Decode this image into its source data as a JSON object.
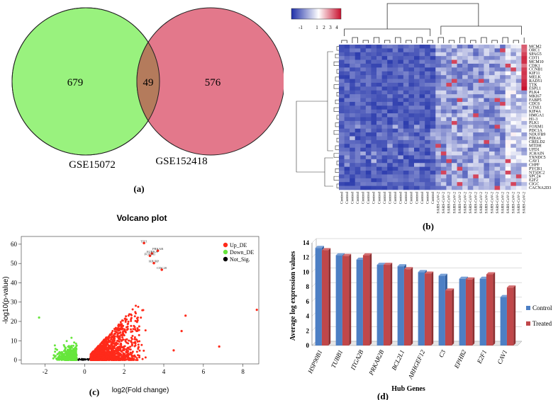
{
  "chart_data": [
    {
      "type": "venn",
      "panel_label": "(a)",
      "sets": [
        {
          "name": "GSE15072",
          "only": 679,
          "color": "#99f27e"
        },
        {
          "name": "GSE152418",
          "only": 576,
          "color": "#e3788b"
        }
      ],
      "intersection": 49,
      "intersection_color": "#b47b5c"
    },
    {
      "type": "heatmap",
      "panel_label": "(b)",
      "color_key": {
        "ticks": [
          "-1",
          "1",
          "2",
          "3",
          "4"
        ],
        "colors": [
          "#1e2fa8",
          "#ffffff",
          "#c8102e"
        ]
      },
      "genes": [
        "MCM2",
        "ORC1",
        "SPAG5",
        "CDT1",
        "MCM10",
        "CDK1",
        "CCNB1",
        "KIF11",
        "MELK",
        "RAD51",
        "TTK",
        "ESPL1",
        "PLK4",
        "MKI67",
        "FABP5",
        "CDC6",
        "GTSE1",
        "KIF4A",
        "HMGA1",
        "H1-3",
        "PLK1",
        "FOXM1",
        "PDC1A",
        "NDUFB9",
        "PDIA6",
        "CRELD2",
        "MTDH",
        "UFD1",
        "JCHAIN",
        "TXNDC5",
        "CAV1",
        "CHPF",
        "PYCR1",
        "NT5DC2",
        "SPC24",
        "E2F2",
        "CIGC",
        "CACNA2D3"
      ],
      "samples": [
        "Control",
        "Control",
        "Control",
        "Control",
        "Control",
        "Control",
        "Control",
        "Control",
        "Control",
        "Control",
        "Control",
        "Control",
        "Control",
        "Control",
        "Control",
        "Control",
        "Control",
        "Control",
        "SARS-CoV-2",
        "SARS-CoV-2",
        "SARS-CoV-2",
        "SARS-CoV-2",
        "SARS-CoV-2",
        "SARS-CoV-2",
        "SARS-CoV-2",
        "SARS-CoV-2",
        "SARS-CoV-2",
        "SARS-CoV-2",
        "SARS-CoV-2",
        "SARS-CoV-2",
        "SARS-CoV-2",
        "SARS-CoV-2",
        "SARS-CoV-2",
        "SARS-CoV-2",
        "SARS-CoV-2"
      ],
      "value_range": [
        -1,
        4
      ]
    },
    {
      "type": "scatter",
      "panel_label": "(c)",
      "title": "Volcano plot",
      "xlabel": "log2(Fold change)",
      "ylabel": "-log10(p-value)",
      "xlim": [
        -3.2,
        8.8
      ],
      "ylim": [
        -2,
        64
      ],
      "xticks": [
        -2,
        0,
        2,
        4,
        6,
        8
      ],
      "yticks": [
        0,
        10,
        20,
        30,
        40,
        50,
        60
      ],
      "legend": [
        {
          "name": "Up_DE",
          "color": "#ff2a1a"
        },
        {
          "name": "Down_DE",
          "color": "#66e63c"
        },
        {
          "name": "Not_Sig.",
          "color": "#000000"
        }
      ],
      "labeled_points": [
        {
          "label": "TIT1",
          "x": 3.0,
          "y": 60.6
        },
        {
          "label": "PRKAR",
          "x": 3.7,
          "y": 56.6
        },
        {
          "label": "AURKA",
          "x": 3.4,
          "y": 55.2
        },
        {
          "label": "FOXM1",
          "x": 3.3,
          "y": 54.0
        },
        {
          "label": "HJURP",
          "x": 3.5,
          "y": 50.2
        },
        {
          "label": "CDC20",
          "x": 3.9,
          "y": 46.8
        }
      ],
      "outliers": [
        {
          "x": 8.7,
          "y": 26
        },
        {
          "x": 5.1,
          "y": 23
        },
        {
          "x": 4.9,
          "y": 15
        },
        {
          "x": 6.8,
          "y": 7
        },
        {
          "x": -2.3,
          "y": 22
        },
        {
          "x": 4.5,
          "y": 5
        }
      ]
    },
    {
      "type": "bar",
      "panel_label": "(d)",
      "categories": [
        "HSP90B1",
        "TUBB1",
        "ITGA2B",
        "PRKAR2B",
        "BCL2L1",
        "ARHGEF12",
        "C3",
        "EPHB2",
        "E2F1",
        "CAV1"
      ],
      "series": [
        {
          "name": "Control",
          "color": "#4d7fc4",
          "values": [
            13.3,
            12.3,
            11.7,
            11.0,
            10.8,
            10.0,
            9.5,
            9.1,
            9.1,
            6.6
          ]
        },
        {
          "name": "Treated",
          "color": "#c0474a",
          "values": [
            13.0,
            12.2,
            12.3,
            11.0,
            10.4,
            9.8,
            7.5,
            9.0,
            9.7,
            7.9
          ]
        }
      ],
      "ylabel": "Average log expression values",
      "xlabel": "Hub Genes",
      "ylim": [
        0,
        14
      ],
      "yticks": [
        0,
        2,
        4,
        6,
        8,
        10,
        12,
        14
      ]
    }
  ]
}
